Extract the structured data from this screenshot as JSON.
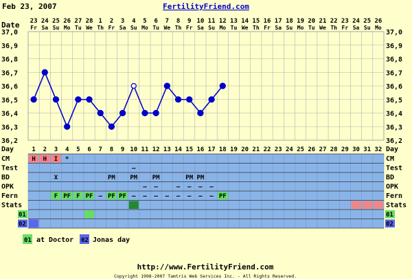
{
  "header": {
    "date": "Feb 23, 2007",
    "site_title": "FertilityFriend.com"
  },
  "date_label": "Date",
  "day_label": "Day",
  "dates": [
    {
      "n": "23",
      "d": "Fr"
    },
    {
      "n": "24",
      "d": "Sa"
    },
    {
      "n": "25",
      "d": "Su"
    },
    {
      "n": "26",
      "d": "Mo"
    },
    {
      "n": "27",
      "d": "Tu"
    },
    {
      "n": "28",
      "d": "We"
    },
    {
      "n": "1",
      "d": "Th"
    },
    {
      "n": "2",
      "d": "Fr"
    },
    {
      "n": "3",
      "d": "Sa"
    },
    {
      "n": "4",
      "d": "Su"
    },
    {
      "n": "5",
      "d": "Mo"
    },
    {
      "n": "6",
      "d": "Tu"
    },
    {
      "n": "7",
      "d": "We"
    },
    {
      "n": "8",
      "d": "Th"
    },
    {
      "n": "9",
      "d": "Fr"
    },
    {
      "n": "10",
      "d": "Sa"
    },
    {
      "n": "11",
      "d": "Su"
    },
    {
      "n": "12",
      "d": "Mo"
    },
    {
      "n": "13",
      "d": "Tu"
    },
    {
      "n": "14",
      "d": "We"
    },
    {
      "n": "15",
      "d": "Th"
    },
    {
      "n": "16",
      "d": "Fr"
    },
    {
      "n": "17",
      "d": "Sa"
    },
    {
      "n": "18",
      "d": "Su"
    },
    {
      "n": "19",
      "d": "Mo"
    },
    {
      "n": "20",
      "d": "Tu"
    },
    {
      "n": "21",
      "d": "We"
    },
    {
      "n": "22",
      "d": "Th"
    },
    {
      "n": "23",
      "d": "Fr"
    },
    {
      "n": "24",
      "d": "Sa"
    },
    {
      "n": "25",
      "d": "Su"
    },
    {
      "n": "26",
      "d": "Mo"
    }
  ],
  "temp_ticks": [
    "37,0",
    "36,9",
    "36,8",
    "36,7",
    "36,6",
    "36,5",
    "36,4",
    "36,3",
    "36,2"
  ],
  "chart_data": {
    "type": "line",
    "x": [
      1,
      2,
      3,
      4,
      5,
      6,
      7,
      8,
      9,
      10,
      11,
      12,
      13,
      14,
      15,
      16,
      17,
      18
    ],
    "values": [
      36.5,
      36.7,
      36.5,
      36.3,
      36.5,
      36.5,
      36.4,
      36.3,
      36.4,
      36.6,
      36.4,
      36.4,
      36.6,
      36.5,
      36.5,
      36.4,
      36.5,
      36.6
    ],
    "open_points": [
      10
    ],
    "ylim": [
      36.2,
      37.0
    ],
    "xlim": [
      1,
      32
    ],
    "grid": true,
    "line_color": "#0000cc"
  },
  "rows": {
    "cm": {
      "label": "CM",
      "cells": [
        {
          "day": 1,
          "text": "H",
          "type": "cm"
        },
        {
          "day": 2,
          "text": "H",
          "type": "cm"
        },
        {
          "day": 3,
          "text": "I",
          "type": "cm"
        },
        {
          "day": 4,
          "text": "*",
          "type": "plain"
        }
      ]
    },
    "test": {
      "label": "Test",
      "cells": [
        {
          "day": 10,
          "text": "–",
          "type": "plain"
        }
      ]
    },
    "bd": {
      "label": "BD",
      "cells": [
        {
          "day": 3,
          "text": "X",
          "type": "plain"
        },
        {
          "day": 8,
          "text": "PM",
          "type": "plain"
        },
        {
          "day": 10,
          "text": "PM",
          "type": "plain"
        },
        {
          "day": 12,
          "text": "PM",
          "type": "plain"
        },
        {
          "day": 15,
          "text": "PM",
          "type": "plain"
        },
        {
          "day": 16,
          "text": "PM",
          "type": "plain"
        }
      ]
    },
    "opk": {
      "label": "OPK",
      "cells": [
        {
          "day": 11,
          "text": "–",
          "type": "plain"
        },
        {
          "day": 12,
          "text": "–",
          "type": "plain"
        },
        {
          "day": 14,
          "text": "–",
          "type": "plain"
        },
        {
          "day": 15,
          "text": "–",
          "type": "plain"
        },
        {
          "day": 16,
          "text": "–",
          "type": "plain"
        },
        {
          "day": 17,
          "text": "–",
          "type": "plain"
        }
      ]
    },
    "fern": {
      "label": "Fern",
      "cells": [
        {
          "day": 3,
          "text": "F",
          "type": "fern"
        },
        {
          "day": 4,
          "text": "PF",
          "type": "fern"
        },
        {
          "day": 5,
          "text": "F",
          "type": "fern"
        },
        {
          "day": 6,
          "text": "PF",
          "type": "fern"
        },
        {
          "day": 7,
          "text": "–",
          "type": "plain"
        },
        {
          "day": 8,
          "text": "PF",
          "type": "fern"
        },
        {
          "day": 9,
          "text": "PF",
          "type": "fern"
        },
        {
          "day": 10,
          "text": "–",
          "type": "plain"
        },
        {
          "day": 11,
          "text": "–",
          "type": "plain"
        },
        {
          "day": 12,
          "text": "–",
          "type": "plain"
        },
        {
          "day": 13,
          "text": "–",
          "type": "plain"
        },
        {
          "day": 14,
          "text": "–",
          "type": "plain"
        },
        {
          "day": 15,
          "text": "–",
          "type": "plain"
        },
        {
          "day": 16,
          "text": "–",
          "type": "plain"
        },
        {
          "day": 17,
          "text": "–",
          "type": "plain"
        },
        {
          "day": 18,
          "text": "PF",
          "type": "fern"
        }
      ]
    },
    "stats": {
      "label": "Stats",
      "cells": [
        {
          "day": 10,
          "text": "",
          "type": "stat_dark"
        },
        {
          "day": 30,
          "text": "",
          "type": "stat_pink"
        },
        {
          "day": 31,
          "text": "",
          "type": "stat_pink"
        },
        {
          "day": 32,
          "text": "",
          "type": "stat_pink"
        }
      ]
    },
    "o1": {
      "label": "01",
      "cells": [
        {
          "day": 6,
          "text": "",
          "type": "o1"
        }
      ]
    },
    "o2": {
      "label": "02",
      "cells": [
        {
          "day": 1,
          "text": "",
          "type": "o2"
        }
      ]
    }
  },
  "legend": {
    "o1_code": "01",
    "o1_text": "at Doctor",
    "o2_code": "02",
    "o2_text": "Jonas day"
  },
  "footer": {
    "url": "http://www.FertilityFriend.com",
    "copyright": "Copyright 1998-2007 Tamtris Web Services Inc. - All Rights Reserved."
  },
  "colors": {
    "page_bg": "#ffffcc",
    "chart_bg": "#ffffcc",
    "grid_line": "#b0b0b0",
    "table_bg": "#8ab4e8",
    "cm_cell": "#ff8080",
    "fern_cell": "#66dd66",
    "stat_dark": "#228833",
    "stat_pink": "#ee8888",
    "o1_cell": "#66dd66",
    "o2_cell": "#5a66ee",
    "title_link": "#0000cc"
  }
}
